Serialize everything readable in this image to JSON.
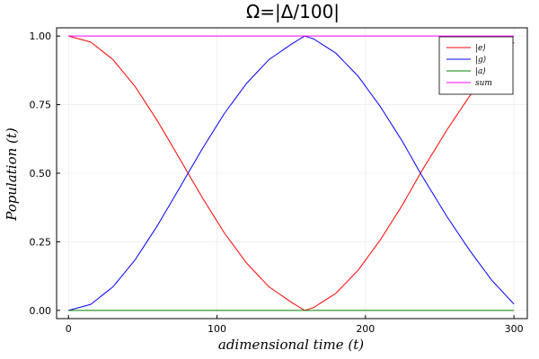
{
  "chart_data": {
    "type": "line",
    "title": "Ω=|Δ/100|",
    "xlabel": "adimensional time (t)",
    "ylabel": "Population (t)",
    "xlim": [
      -8,
      309
    ],
    "ylim": [
      -0.03,
      1.03
    ],
    "xticks": [
      0,
      100,
      200,
      300
    ],
    "xtick_labels": [
      "0",
      "100",
      "200",
      "300"
    ],
    "yticks": [
      0,
      0.25,
      0.5,
      0.75,
      1.0
    ],
    "ytick_labels": [
      "0.00",
      "0.25",
      "0.50",
      "0.75",
      "1.00"
    ],
    "grid": true,
    "legend_position": "top-right",
    "series": [
      {
        "name": "|e⟩",
        "color": "#ff0000",
        "x": [
          0,
          15,
          30,
          45,
          60,
          75,
          80,
          90,
          105,
          120,
          135,
          150,
          159,
          165,
          180,
          195,
          210,
          225,
          237,
          255,
          270,
          285,
          300
        ],
        "y": [
          1.0,
          0.978,
          0.914,
          0.815,
          0.69,
          0.552,
          0.505,
          0.412,
          0.282,
          0.172,
          0.086,
          0.03,
          0.0,
          0.01,
          0.062,
          0.146,
          0.257,
          0.385,
          0.5,
          0.659,
          0.78,
          0.89,
          0.977
        ]
      },
      {
        "name": "|g⟩",
        "color": "#0000ff",
        "x": [
          0,
          15,
          30,
          45,
          60,
          75,
          80,
          90,
          105,
          120,
          135,
          150,
          159,
          165,
          180,
          195,
          210,
          225,
          237,
          255,
          270,
          285,
          300
        ],
        "y": [
          0.0,
          0.022,
          0.086,
          0.185,
          0.31,
          0.448,
          0.495,
          0.588,
          0.718,
          0.828,
          0.914,
          0.97,
          1.0,
          0.99,
          0.938,
          0.854,
          0.743,
          0.615,
          0.5,
          0.341,
          0.22,
          0.11,
          0.023
        ]
      },
      {
        "name": "|a⟩",
        "color": "#008000",
        "x": [
          0,
          300
        ],
        "y": [
          0.0,
          0.0
        ]
      },
      {
        "name": "sum",
        "color": "#ff00ff",
        "x": [
          0,
          300
        ],
        "y": [
          1.0,
          1.0
        ]
      }
    ]
  }
}
